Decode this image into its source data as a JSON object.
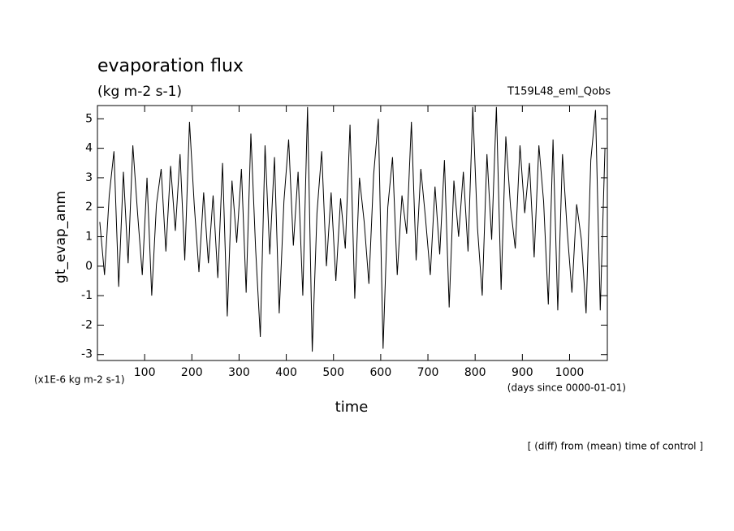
{
  "chart_data": {
    "type": "line",
    "title": "evaporation flux",
    "subtitle": "(kg m-2 s-1)",
    "run_label": "T159L48_eml_Qobs",
    "ylabel": "gt_evap_anm",
    "yunit": "(x1E-6 kg m-2 s-1)",
    "xunit": "(days since 0000-01-01)",
    "xlabel": "time",
    "note": "[ (diff) from (mean) time of control ]",
    "xlim": [
      0,
      1080
    ],
    "ylim": [
      -3.2,
      5.45
    ],
    "xticks": [
      100,
      200,
      300,
      400,
      500,
      600,
      700,
      800,
      900,
      1000
    ],
    "yticks": [
      -3,
      -2,
      -1,
      0,
      1,
      2,
      3,
      4,
      5
    ],
    "color": "#000000",
    "x": [
      5,
      15,
      25,
      35,
      45,
      55,
      65,
      75,
      85,
      95,
      105,
      115,
      125,
      135,
      145,
      155,
      165,
      175,
      185,
      195,
      205,
      215,
      225,
      235,
      245,
      255,
      265,
      275,
      285,
      295,
      305,
      315,
      325,
      335,
      345,
      355,
      365,
      375,
      385,
      395,
      405,
      415,
      425,
      435,
      445,
      455,
      465,
      475,
      485,
      495,
      505,
      515,
      525,
      535,
      545,
      555,
      565,
      575,
      585,
      595,
      605,
      615,
      625,
      635,
      645,
      655,
      665,
      675,
      685,
      695,
      705,
      715,
      725,
      735,
      745,
      755,
      765,
      775,
      785,
      795,
      805,
      815,
      825,
      835,
      845,
      855,
      865,
      875,
      885,
      895,
      905,
      915,
      925,
      935,
      945,
      955,
      965,
      975,
      985,
      995,
      1005,
      1015,
      1025,
      1035,
      1045,
      1055,
      1065,
      1075
    ],
    "values": [
      1.5,
      -0.3,
      2.4,
      3.9,
      -0.7,
      3.2,
      0.1,
      4.1,
      1.8,
      -0.3,
      3.0,
      -1.0,
      2.1,
      3.3,
      0.5,
      3.4,
      1.2,
      3.8,
      0.2,
      4.9,
      2.1,
      -0.2,
      2.5,
      0.1,
      2.4,
      -0.4,
      3.5,
      -1.7,
      2.9,
      0.8,
      3.3,
      -0.9,
      4.5,
      0.6,
      -2.4,
      4.1,
      0.4,
      3.7,
      -1.6,
      2.2,
      4.3,
      0.7,
      3.2,
      -1.0,
      5.4,
      -2.9,
      1.8,
      3.9,
      0.0,
      2.5,
      -0.5,
      2.3,
      0.6,
      4.8,
      -1.1,
      3.0,
      1.5,
      -0.6,
      3.1,
      5.0,
      -2.8,
      2.0,
      3.7,
      -0.3,
      2.4,
      1.1,
      4.9,
      0.2,
      3.3,
      1.6,
      -0.3,
      2.7,
      0.4,
      3.6,
      -1.4,
      2.9,
      1.0,
      3.2,
      0.5,
      5.4,
      1.3,
      -1.0,
      3.8,
      0.9,
      5.4,
      -0.8,
      4.4,
      2.0,
      0.6,
      4.1,
      1.8,
      3.5,
      0.3,
      4.1,
      2.2,
      -1.3,
      4.3,
      -1.5,
      3.8,
      1.2,
      -0.9,
      2.1,
      0.9,
      -1.6,
      3.6,
      5.3,
      -1.5,
      4.0
    ]
  }
}
